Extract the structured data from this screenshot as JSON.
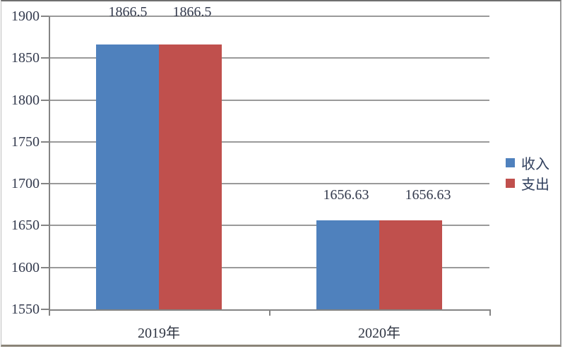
{
  "chart_data": {
    "type": "bar",
    "categories": [
      "2019年",
      "2020年"
    ],
    "series": [
      {
        "name": "收入",
        "color": "#4F81BD",
        "values": [
          1866.5,
          1656.63
        ],
        "labels": [
          "1866.5",
          "1656.63"
        ]
      },
      {
        "name": "支出",
        "color": "#C0504D",
        "values": [
          1866.5,
          1656.63
        ],
        "labels": [
          "1866.5",
          "1656.63"
        ]
      }
    ],
    "y_axis": {
      "min": 1550,
      "max": 1900,
      "step": 50,
      "tick_labels": [
        "1900",
        "1850",
        "1800",
        "1750",
        "1700",
        "1650",
        "1600",
        "1550"
      ]
    },
    "x_axis": {
      "tick_labels": [
        "2019年",
        "2020年"
      ]
    },
    "ylim": [
      1550,
      1900
    ],
    "grid": true,
    "legend_position": "right",
    "colors": {
      "income": "#4F81BD",
      "expense": "#C0504D",
      "gridline": "#9a9a9a",
      "axis": "#848484",
      "text": "#333a4d"
    }
  }
}
